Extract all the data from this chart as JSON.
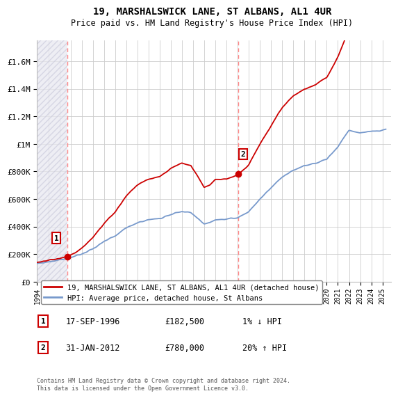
{
  "title": "19, MARSHALSWICK LANE, ST ALBANS, AL1 4UR",
  "subtitle": "Price paid vs. HM Land Registry's House Price Index (HPI)",
  "xlim_start": 1994.0,
  "xlim_end": 2025.8,
  "ylim_min": 0,
  "ylim_max": 1750000,
  "yticks": [
    0,
    200000,
    400000,
    600000,
    800000,
    1000000,
    1200000,
    1400000,
    1600000
  ],
  "ytick_labels": [
    "£0",
    "£200K",
    "£400K",
    "£600K",
    "£800K",
    "£1M",
    "£1.2M",
    "£1.4M",
    "£1.6M"
  ],
  "sale1_date": 1996.72,
  "sale1_price": 182500,
  "sale1_label": "1",
  "sale2_date": 2012.08,
  "sale2_price": 780000,
  "sale2_label": "2",
  "hpi_line_color": "#7799cc",
  "price_line_color": "#cc0000",
  "marker_color": "#cc0000",
  "dashed_line_color": "#ff8888",
  "grid_color": "#cccccc",
  "legend_label_price": "19, MARSHALSWICK LANE, ST ALBANS, AL1 4UR (detached house)",
  "legend_label_hpi": "HPI: Average price, detached house, St Albans",
  "annotation1_date": "17-SEP-1996",
  "annotation1_price": "£182,500",
  "annotation1_hpi": "1% ↓ HPI",
  "annotation2_date": "31-JAN-2012",
  "annotation2_price": "£780,000",
  "annotation2_hpi": "20% ↑ HPI",
  "footnote": "Contains HM Land Registry data © Crown copyright and database right 2024.\nThis data is licensed under the Open Government Licence v3.0.",
  "xtick_years": [
    1994,
    1995,
    1996,
    1997,
    1998,
    1999,
    2000,
    2001,
    2002,
    2003,
    2004,
    2005,
    2006,
    2007,
    2008,
    2009,
    2010,
    2011,
    2012,
    2013,
    2014,
    2015,
    2016,
    2017,
    2018,
    2019,
    2020,
    2021,
    2022,
    2023,
    2024,
    2025
  ]
}
